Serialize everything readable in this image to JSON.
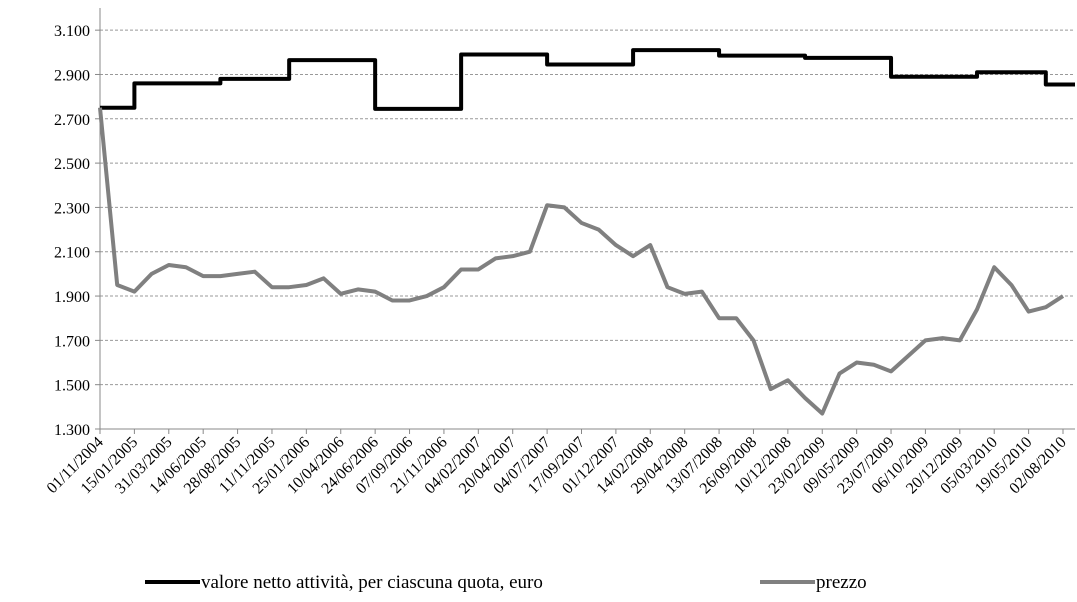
{
  "chart_data": {
    "type": "line",
    "categories": [
      "01/11/2004",
      null,
      "15/01/2005",
      null,
      "31/03/2005",
      null,
      "14/06/2005",
      null,
      "28/08/2005",
      null,
      "11/11/2005",
      null,
      "25/01/2006",
      null,
      "10/04/2006",
      null,
      "24/06/2006",
      null,
      "07/09/2006",
      null,
      "21/11/2006",
      null,
      "04/02/2007",
      null,
      "20/04/2007",
      null,
      "04/07/2007",
      null,
      "17/09/2007",
      null,
      "01/12/2007",
      null,
      "14/02/2008",
      null,
      "29/04/2008",
      null,
      "13/07/2008",
      null,
      "26/09/2008",
      null,
      "10/12/2008",
      null,
      "23/02/2009",
      null,
      "09/05/2009",
      null,
      "23/07/2009",
      null,
      "06/10/2009",
      null,
      "20/12/2009",
      null,
      "05/03/2010",
      null,
      "19/05/2010",
      null,
      "02/08/2010"
    ],
    "series": [
      {
        "name": "valore netto attività, per ciascuna quota, euro",
        "color": "#000000",
        "drawstyle": "steps-post",
        "values": [
          2750,
          2750,
          2860,
          2860,
          2860,
          2860,
          2860,
          2880,
          2880,
          2880,
          2880,
          2965,
          2965,
          2965,
          2965,
          2965,
          2745,
          2745,
          2745,
          2745,
          2745,
          2990,
          2990,
          2990,
          2990,
          2990,
          2945,
          2945,
          2945,
          2945,
          2945,
          3010,
          3010,
          3010,
          3010,
          3010,
          2985,
          2985,
          2985,
          2985,
          2985,
          2975,
          2975,
          2975,
          2975,
          2975,
          2890,
          2890,
          2890,
          2890,
          2890,
          2910,
          2910,
          2910,
          2910,
          2855,
          2855
        ]
      },
      {
        "name": "prezzo",
        "color": "#808080",
        "values": [
          2750,
          1950,
          1920,
          2000,
          2040,
          2030,
          1990,
          1990,
          2000,
          2010,
          1940,
          1940,
          1950,
          1980,
          1910,
          1930,
          1920,
          1880,
          1880,
          1900,
          1940,
          2020,
          2020,
          2070,
          2080,
          2100,
          2310,
          2300,
          2230,
          2200,
          2130,
          2080,
          2130,
          1940,
          1910,
          1920,
          1800,
          1800,
          1700,
          1480,
          1520,
          1440,
          1370,
          1550,
          1600,
          1590,
          1560,
          1630,
          1700,
          1710,
          1700,
          1840,
          2030,
          1950,
          1830,
          1850,
          1900
        ]
      }
    ],
    "ylim": [
      1300,
      3200
    ],
    "yticks": [
      {
        "value": 1300,
        "label": "1.300"
      },
      {
        "value": 1500,
        "label": "1.500"
      },
      {
        "value": 1700,
        "label": "1.700"
      },
      {
        "value": 1900,
        "label": "1.900"
      },
      {
        "value": 2100,
        "label": "2.100"
      },
      {
        "value": 2300,
        "label": "2.300"
      },
      {
        "value": 2500,
        "label": "2.500"
      },
      {
        "value": 2700,
        "label": "2.700"
      },
      {
        "value": 2900,
        "label": "2.900"
      },
      {
        "value": 3100,
        "label": "3.100"
      }
    ],
    "grid": true,
    "legend": "bottom"
  }
}
